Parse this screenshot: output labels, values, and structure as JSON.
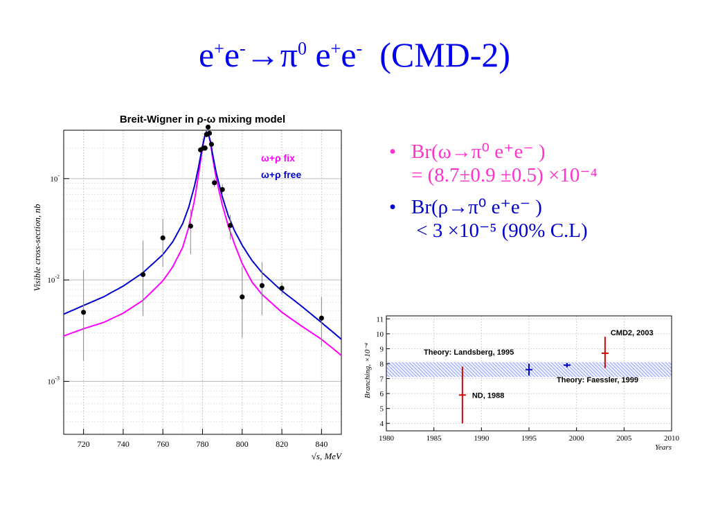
{
  "slide": {
    "title": "e⁺e⁻→π⁰ e⁺e⁻  (CMD-2)",
    "title_color": "#0000ee",
    "text_pink": "#ff33cc",
    "text_blue": "#0000cc"
  },
  "bullets": [
    {
      "line1": "Br(ω→π⁰ e⁺e⁻ )",
      "line2": "= (8.7±0.9 ±0.5) ×10⁻⁴",
      "color": "#ff33cc"
    },
    {
      "line1": "Br(ρ→π⁰ e⁺e⁻ )",
      "line2": " < 3 ×10⁻⁵ (90% C.L)",
      "color": "#0000cc"
    }
  ],
  "chart_data": [
    {
      "type": "scatter",
      "title": "Breit-Wigner in ρ-ω mixing model",
      "xlabel": "√s, MeV",
      "ylabel": "Visible cross-section, nb",
      "xlim": [
        710,
        850
      ],
      "ylim": [
        0.0003,
        0.3
      ],
      "y_scale": "log",
      "x_ticks": [
        720,
        740,
        760,
        780,
        800,
        820,
        840
      ],
      "y_tick_labels": [
        {
          "value": 0.1,
          "base": "10",
          "exp": "-"
        },
        {
          "value": 0.01,
          "base": "10",
          "exp": "-2"
        },
        {
          "value": 0.001,
          "base": "10",
          "exp": "-3"
        }
      ],
      "grid": true,
      "legend_position": "top-right",
      "legend": [
        {
          "label": "ω+ρ fix",
          "color": "#ff00ff"
        },
        {
          "label": "ω+ρ free",
          "color": "#0000cc"
        }
      ],
      "points": [
        {
          "x": 720,
          "y": 0.0048,
          "lo": 0.0016,
          "hi": 0.0125
        },
        {
          "x": 750,
          "y": 0.0113,
          "lo": 0.0044,
          "hi": 0.0245
        },
        {
          "x": 760,
          "y": 0.026,
          "lo": 0.0135,
          "hi": 0.04
        },
        {
          "x": 774,
          "y": 0.034,
          "lo": 0.018,
          "hi": 0.05
        },
        {
          "x": 779,
          "y": 0.192,
          "lo": 0.18,
          "hi": 0.205
        },
        {
          "x": 780.5,
          "y": 0.2,
          "lo": 0.187,
          "hi": 0.214
        },
        {
          "x": 781.3,
          "y": 0.2,
          "lo": 0.187,
          "hi": 0.214
        },
        {
          "x": 782,
          "y": 0.272,
          "lo": 0.257,
          "hi": 0.288
        },
        {
          "x": 782.8,
          "y": 0.322,
          "lo": 0.305,
          "hi": 0.34
        },
        {
          "x": 783.5,
          "y": 0.28,
          "lo": 0.264,
          "hi": 0.296
        },
        {
          "x": 784.5,
          "y": 0.218,
          "lo": 0.204,
          "hi": 0.232
        },
        {
          "x": 786,
          "y": 0.091,
          "lo": 0.082,
          "hi": 0.1
        },
        {
          "x": 790,
          "y": 0.078,
          "lo": 0.068,
          "hi": 0.088
        },
        {
          "x": 794,
          "y": 0.0345,
          "lo": 0.025,
          "hi": 0.044
        },
        {
          "x": 800,
          "y": 0.0068,
          "lo": 0.0027,
          "hi": 0.0135
        },
        {
          "x": 810,
          "y": 0.0088,
          "lo": 0.0045,
          "hi": 0.015
        },
        {
          "x": 820,
          "y": 0.0083,
          "lo": 0.0072,
          "hi": 0.0095
        },
        {
          "x": 840,
          "y": 0.0042,
          "lo": 0.0022,
          "hi": 0.0068
        }
      ],
      "curves": [
        {
          "name": "ω+ρ fix",
          "color": "#ff00ff",
          "x": [
            710,
            720,
            730,
            740,
            750,
            760,
            765,
            770,
            773,
            776,
            778,
            780,
            781,
            782,
            783,
            784,
            785,
            787,
            790,
            793,
            796,
            800,
            805,
            810,
            820,
            830,
            840,
            850
          ],
          "y": [
            0.0028,
            0.0033,
            0.0038,
            0.0047,
            0.0063,
            0.0098,
            0.0135,
            0.021,
            0.033,
            0.062,
            0.11,
            0.2,
            0.255,
            0.29,
            0.275,
            0.225,
            0.165,
            0.098,
            0.055,
            0.034,
            0.023,
            0.0145,
            0.0095,
            0.0072,
            0.0048,
            0.0035,
            0.0026,
            0.0018
          ]
        },
        {
          "name": "ω+ρ free",
          "color": "#0000cc",
          "x": [
            710,
            720,
            730,
            740,
            750,
            760,
            765,
            770,
            773,
            776,
            778,
            780,
            781,
            782,
            783,
            784,
            785,
            787,
            790,
            793,
            796,
            800,
            805,
            810,
            820,
            830,
            840,
            850
          ],
          "y": [
            0.0046,
            0.0056,
            0.0068,
            0.0087,
            0.0118,
            0.0178,
            0.0238,
            0.036,
            0.052,
            0.085,
            0.13,
            0.21,
            0.258,
            0.288,
            0.275,
            0.232,
            0.178,
            0.112,
            0.066,
            0.043,
            0.031,
            0.022,
            0.0155,
            0.0118,
            0.0078,
            0.0055,
            0.0038,
            0.0026
          ]
        }
      ]
    },
    {
      "type": "scatter",
      "xlabel": "Years",
      "ylabel": "Branching, ×10⁻⁴",
      "xlim": [
        1980,
        2010
      ],
      "ylim": [
        3.5,
        11.2
      ],
      "x_ticks": [
        1980,
        1985,
        1990,
        1995,
        2000,
        2005,
        2010
      ],
      "y_ticks": [
        4,
        5,
        6,
        7,
        8,
        9,
        10,
        11
      ],
      "grid": true,
      "band": {
        "y_lo": 7.1,
        "y_hi": 8.1,
        "color": "#8899ff"
      },
      "points": [
        {
          "label": "ND, 1988",
          "x": 1988,
          "y": 5.9,
          "lo": 4.0,
          "hi": 7.8,
          "color": "#dd0000"
        },
        {
          "label": "",
          "x": 1995,
          "y": 7.6,
          "lo": 7.2,
          "hi": 8.0,
          "color": "#0000cc"
        },
        {
          "label": "",
          "x": 1999,
          "y": 7.9,
          "lo": 7.75,
          "hi": 8.05,
          "color": "#0000cc"
        },
        {
          "label": "CMD2, 2003",
          "x": 2003,
          "y": 8.7,
          "lo": 7.7,
          "hi": 9.8,
          "color": "#dd0000"
        }
      ],
      "annotations": [
        "Theory: Landsberg, 1995",
        "Theory: Faessler, 1999"
      ]
    }
  ]
}
